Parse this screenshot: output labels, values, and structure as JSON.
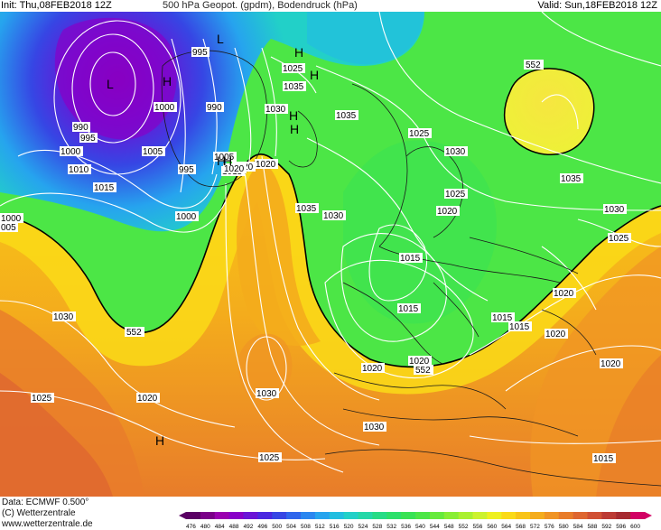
{
  "header": {
    "init": "Init: Thu,08FEB2018 12Z",
    "title": "500 hPa Geopot. (gpdm), Bodendruck (hPa)",
    "valid": "Valid: Sun,18FEB2018 12Z"
  },
  "footer": {
    "data_source": "Data: ECMWF   0.500°",
    "copyright": "(C) Wetterzentrale",
    "url": "www.wetterzentrale.de"
  },
  "legend": {
    "values": [
      "476",
      "480",
      "484",
      "488",
      "492",
      "496",
      "500",
      "504",
      "508",
      "512",
      "516",
      "520",
      "524",
      "528",
      "532",
      "536",
      "540",
      "544",
      "548",
      "552",
      "556",
      "560",
      "564",
      "568",
      "572",
      "576",
      "580",
      "584",
      "588",
      "592",
      "596",
      "600"
    ],
    "colors": [
      "#5a0064",
      "#7a0088",
      "#9a00b0",
      "#8800c8",
      "#6a14d6",
      "#4a28e0",
      "#3646e4",
      "#2f66ec",
      "#2a86f0",
      "#26a4ee",
      "#22bee0",
      "#22d0c8",
      "#24d8a8",
      "#26dc86",
      "#2ce06a",
      "#38e254",
      "#4ce646",
      "#66ea3c",
      "#88ee34",
      "#aaf030",
      "#ccf22e",
      "#eef020",
      "#fada18",
      "#f8c418",
      "#f4ac1c",
      "#f09424",
      "#e87c2a",
      "#de6630",
      "#d05034",
      "#bc3a34",
      "#a62a30",
      "#d20064"
    ]
  },
  "isobar_labels": [
    {
      "text": "995"
    },
    {
      "text": "1000"
    },
    {
      "text": "990"
    },
    {
      "text": "990"
    },
    {
      "text": "995"
    },
    {
      "text": "1000"
    },
    {
      "text": "1005"
    },
    {
      "text": "1010"
    },
    {
      "text": "1015"
    },
    {
      "text": "995"
    },
    {
      "text": "1000"
    },
    {
      "text": "1005"
    },
    {
      "text": "1020"
    },
    {
      "text": "1015"
    },
    {
      "text": "1000"
    },
    {
      "text": "005"
    },
    {
      "text": "1030"
    },
    {
      "text": "1035"
    },
    {
      "text": "1030"
    },
    {
      "text": "1025"
    },
    {
      "text": "1035"
    },
    {
      "text": "1025"
    },
    {
      "text": "1030"
    },
    {
      "text": "1035"
    },
    {
      "text": "1030"
    },
    {
      "text": "1025"
    },
    {
      "text": "1020"
    },
    {
      "text": "1015"
    },
    {
      "text": "1015"
    },
    {
      "text": "1020"
    },
    {
      "text": "1020"
    },
    {
      "text": "1015"
    },
    {
      "text": "1020"
    },
    {
      "text": "1030"
    },
    {
      "text": "1020"
    },
    {
      "text": "1025"
    },
    {
      "text": "1025"
    },
    {
      "text": "1030"
    },
    {
      "text": "1020"
    },
    {
      "text": "1035"
    },
    {
      "text": "1015"
    },
    {
      "text": "1025"
    },
    {
      "text": "1030"
    },
    {
      "text": "1020"
    },
    {
      "text": "1020"
    },
    {
      "text": "1015"
    },
    {
      "text": "1020"
    }
  ],
  "height_labels": [
    {
      "text": "552"
    },
    {
      "text": "552"
    },
    {
      "text": "552"
    }
  ],
  "pressure_centers": [
    {
      "text": "L"
    },
    {
      "text": "H"
    },
    {
      "text": "L"
    },
    {
      "text": "H"
    },
    {
      "text": "H"
    },
    {
      "text": "H"
    },
    {
      "text": "H"
    },
    {
      "text": "H"
    },
    {
      "text": "H"
    },
    {
      "text": "H"
    }
  ]
}
